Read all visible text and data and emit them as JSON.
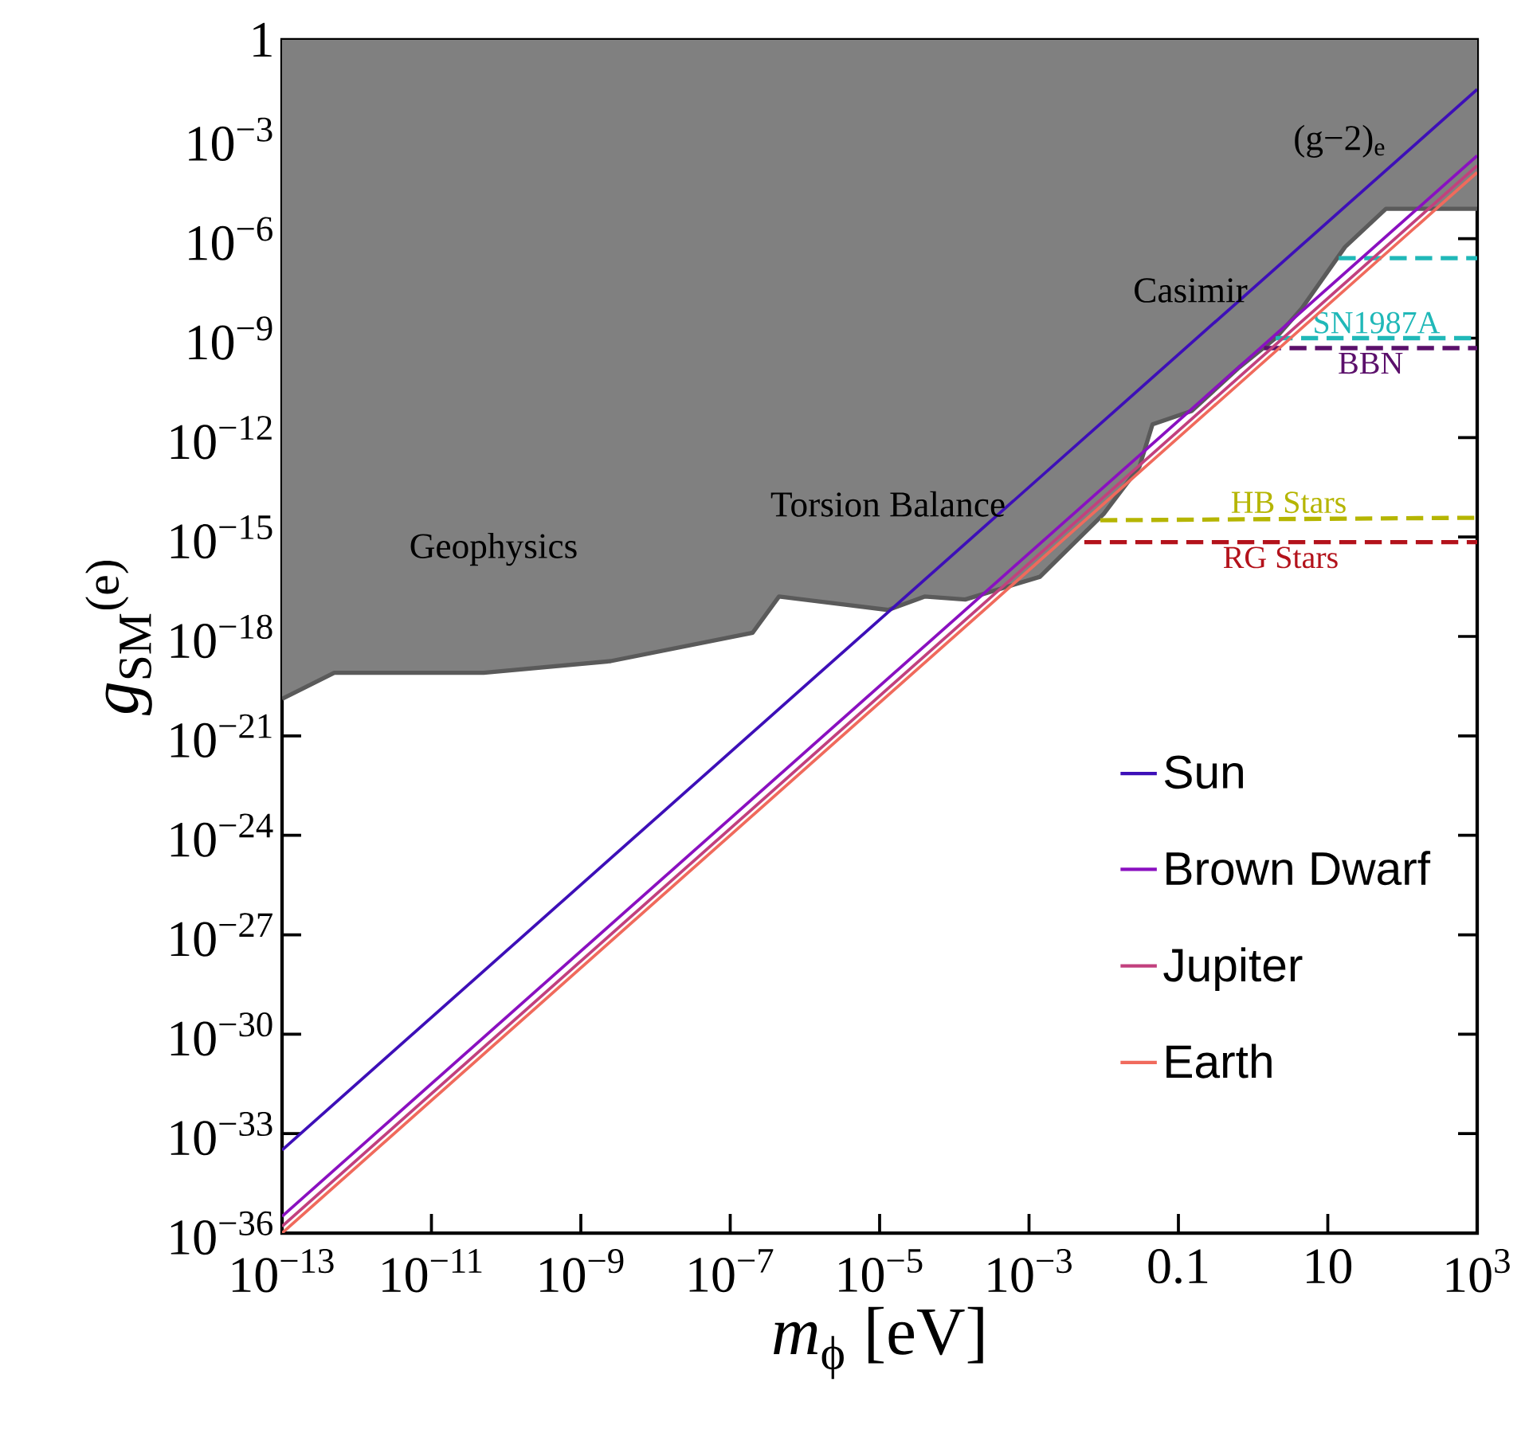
{
  "chart_data": {
    "type": "line",
    "xlabel": "*m*$_{ϕ}$ [eV]",
    "ylabel": "*g*$_{SM}$$^{(e)}$",
    "log": "xy",
    "xlim": [
      1e-13,
      1000
    ],
    "ylim": [
      1e-36,
      1
    ],
    "xticks": [
      {
        "value": 1e-13,
        "label": "10$^{−13}$"
      },
      {
        "value": 1e-11,
        "label": "10$^{−11}$"
      },
      {
        "value": 1e-09,
        "label": "10$^{−9}$"
      },
      {
        "value": 1e-07,
        "label": "10$^{−7}$"
      },
      {
        "value": 1e-05,
        "label": "10$^{−5}$"
      },
      {
        "value": 0.001,
        "label": "10$^{−3}$"
      },
      0.1,
      10,
      {
        "value": 1000,
        "label": "10$^{3}$"
      }
    ],
    "yticks": [
      {
        "value": 1e-36,
        "label": "10$^{−36}$"
      },
      {
        "value": 1e-33,
        "label": "10$^{−33}$"
      },
      {
        "value": 1e-30,
        "label": "10$^{−30}$"
      },
      {
        "value": 1e-27,
        "label": "10$^{−27}$"
      },
      {
        "value": 1e-24,
        "label": "10$^{−24}$"
      },
      {
        "value": 1e-21,
        "label": "10$^{−21}$"
      },
      {
        "value": 1e-18,
        "label": "10$^{−18}$"
      },
      {
        "value": 1e-15,
        "label": "10$^{−15}$"
      },
      {
        "value": 1e-12,
        "label": "10$^{−12}$"
      },
      {
        "value": 1e-09,
        "label": "10$^{−9}$"
      },
      {
        "value": 1e-06,
        "label": "10$^{−6}$"
      },
      {
        "value": 0.001,
        "label": "10$^{−3}$"
      },
      1
    ],
    "marker": "none",
    "legend": "bottom right",
    "series": [
      {
        "type": "line",
        "color": "#5a5a5a",
        "x": [
          1e-13,
          5e-13,
          5e-11,
          2.5e-09,
          2e-07,
          4.5e-07,
          1.3e-05,
          4e-05,
          0.00014,
          0.0014,
          0.01,
          0.03,
          0.045,
          0.15,
          0.65,
          2,
          4.5,
          17,
          60,
          1000
        ],
        "values": [
          1.3e-20,
          8e-20,
          8e-20,
          1.8e-19,
          1.3e-18,
          1.6e-17,
          6.3e-18,
          1.6e-17,
          1.3e-17,
          6.3e-17,
          5e-15,
          1.3e-13,
          2.5e-12,
          6.3e-12,
          1.3e-10,
          1e-09,
          8e-09,
          5.6e-07,
          8e-06,
          8e-06
        ],
        "lower": [
          1.3e-20,
          8e-20,
          8e-20,
          1.8e-19,
          1.3e-18,
          1.6e-17,
          6.3e-18,
          1.6e-17,
          1.3e-17,
          6.3e-17,
          5e-15,
          1.3e-13,
          2.5e-12,
          6.3e-12,
          1.3e-10,
          1e-09,
          8e-09,
          5.6e-07,
          8e-06,
          8e-06
        ],
        "upper": [
          1,
          1,
          1,
          1,
          1,
          1,
          1,
          1,
          1,
          1,
          1,
          1,
          1,
          1,
          1,
          1,
          1,
          1,
          1,
          1
        ]
      },
      {
        "type": "line",
        "line_style": "dashed",
        "color": "#20b8b8",
        "x": [
          14,
          1000
        ],
        "values": [
          2.6e-07,
          2.6e-07
        ]
      },
      {
        "type": "line",
        "line_style": "dashed",
        "name": "SN1987A",
        "color": "#20b8b8",
        "x": [
          2,
          1000
        ],
        "values": [
          1e-09,
          1e-09
        ]
      },
      {
        "type": "line",
        "line_style": "dashed",
        "name": "BBN",
        "color": "#5b106b",
        "x": [
          1.4,
          1000
        ],
        "values": [
          5e-10,
          5e-10
        ]
      },
      {
        "type": "line",
        "line_style": "dashed",
        "name": "HB Stars",
        "color": "#b5b500",
        "x": [
          0.009,
          1000
        ],
        "values": [
          3.2e-15,
          3.8e-15
        ]
      },
      {
        "type": "line",
        "line_style": "dashed",
        "name": "RG Stars",
        "color": "#b3121b",
        "x": [
          0.0055,
          1000
        ],
        "values": [
          7e-16,
          7e-16
        ]
      },
      {
        "name": "Sun",
        "color": "#3d0fb8",
        "x": [
          1e-13,
          1000
        ],
        "values": [
          3.2e-34,
          0.032
        ]
      },
      {
        "name": "Brown Dwarf",
        "color": "#8a10c0",
        "x": [
          1e-13,
          1000
        ],
        "values": [
          3.2e-36,
          0.00032
        ]
      },
      {
        "name": "Jupiter",
        "color": "#c2407e",
        "x": [
          1e-13,
          1000
        ],
        "values": [
          1.6e-36,
          0.00016
        ]
      },
      {
        "name": "Earth",
        "color": "#f06a5c",
        "x": [
          1e-13,
          1000
        ],
        "values": [
          1e-36,
          0.0001
        ]
      }
    ],
    "annotations": [
      "Geophysics",
      "Torsion Balance",
      "Casimir",
      "(g−2)$_{e}$"
    ]
  }
}
